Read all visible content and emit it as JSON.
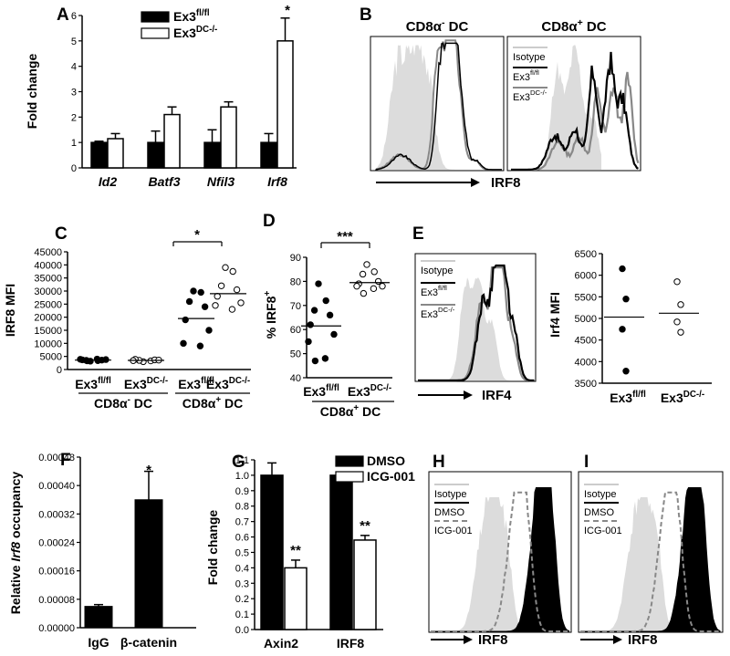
{
  "chart_data": [
    {
      "panel": "A",
      "type": "bar",
      "ylabel": "Fold change",
      "ylim": [
        0,
        6
      ],
      "yticks": [
        "0",
        "1",
        "2",
        "3",
        "4",
        "5",
        "6"
      ],
      "categories": [
        "Id2",
        "Batf3",
        "Nfil3",
        "Irf8"
      ],
      "series": [
        {
          "name_base": "Ex3",
          "name_sup": "fl/fl",
          "color": "#000000",
          "values": [
            1.0,
            1.0,
            1.0,
            1.0
          ],
          "err": [
            0.05,
            0.45,
            0.5,
            0.35
          ]
        },
        {
          "name_base": "Ex3",
          "name_sup": "DC-/-",
          "color": "#ffffff",
          "values": [
            1.15,
            2.1,
            2.4,
            5.0
          ],
          "err": [
            0.2,
            0.3,
            0.2,
            0.9
          ]
        }
      ],
      "annotations": [
        "*"
      ]
    },
    {
      "panel": "B",
      "type": "histogram",
      "titles_base": [
        "CD8α",
        "CD8α"
      ],
      "titles_sup": [
        "-",
        "+"
      ],
      "titles_suffix": [
        " DC",
        " DC"
      ],
      "xlabel": "IRF8",
      "legend": [
        {
          "base": "Isotype",
          "sup": "",
          "color": "#cccccc"
        },
        {
          "base": "Ex3",
          "sup": "fl/fl",
          "color": "#000000"
        },
        {
          "base": "Ex3",
          "sup": "DC-/-",
          "color": "#888888"
        }
      ]
    },
    {
      "panel": "C",
      "type": "scatter",
      "ylabel": "IRF8 MFI",
      "ylim": [
        0,
        45000
      ],
      "yticks": [
        "0",
        "5000",
        "10000",
        "15000",
        "20000",
        "25000",
        "30000",
        "35000",
        "40000",
        "45000"
      ],
      "groups": [
        {
          "base": "Ex3",
          "sup": "fl/fl",
          "filled": true,
          "values": [
            3200,
            3400,
            3500,
            3600,
            3700,
            3800,
            3900,
            4000,
            3300
          ],
          "mean": 3600
        },
        {
          "base": "Ex3",
          "sup": "DC-/-",
          "filled": false,
          "values": [
            3000,
            3300,
            3500,
            3700,
            3900,
            3600,
            3400
          ],
          "mean": 3500
        },
        {
          "base": "Ex3",
          "sup": "fl/fl",
          "filled": true,
          "values": [
            30000,
            29500,
            26000,
            24000,
            19000,
            15000,
            10000,
            9000
          ],
          "mean": 19500
        },
        {
          "base": "Ex3",
          "sup": "DC-/-",
          "filled": false,
          "values": [
            39000,
            37500,
            32000,
            30500,
            28000,
            25500,
            24500,
            23000
          ],
          "mean": 29000
        }
      ],
      "group_labels_base": [
        "CD8α",
        "CD8α"
      ],
      "group_labels_sup": [
        "-",
        "+"
      ],
      "group_labels_suffix": [
        " DC",
        " DC"
      ],
      "annotations": [
        "*"
      ]
    },
    {
      "panel": "D",
      "type": "scatter",
      "ylabel": "% IRF8",
      "ylabel_sup": "+",
      "ylim": [
        40,
        90
      ],
      "yticks": [
        "40",
        "50",
        "60",
        "70",
        "80",
        "90"
      ],
      "groups": [
        {
          "base": "Ex3",
          "sup": "fl/fl",
          "filled": true,
          "values": [
            79,
            72,
            68,
            66,
            62,
            58,
            55,
            48,
            47
          ],
          "mean": 61.5
        },
        {
          "base": "Ex3",
          "sup": "DC-/-",
          "filled": false,
          "values": [
            87,
            84,
            83,
            80,
            79,
            78,
            78,
            77,
            75
          ],
          "mean": 79.5
        }
      ],
      "group_label_base": "CD8α",
      "group_label_sup": "+",
      "group_label_suffix": " DC",
      "annotations": [
        "***"
      ]
    },
    {
      "panel": "E",
      "type": "histogram",
      "xlabel": "IRF4",
      "legend": [
        {
          "base": "Isotype",
          "sup": "",
          "color": "#cccccc"
        },
        {
          "base": "Ex3",
          "sup": "fl/fl",
          "color": "#000000"
        },
        {
          "base": "Ex3",
          "sup": "DC-/-",
          "color": "#888888"
        }
      ]
    },
    {
      "panel": "E2",
      "type": "scatter",
      "ylabel": "Irf4 MFI",
      "ylim": [
        3500,
        6500
      ],
      "yticks": [
        "3500",
        "4000",
        "4500",
        "5000",
        "5500",
        "6000",
        "6500"
      ],
      "groups": [
        {
          "base": "Ex3",
          "sup": "fl/fl",
          "filled": true,
          "values": [
            6150,
            5450,
            4750,
            3780
          ],
          "mean": 5030
        },
        {
          "base": "Ex3",
          "sup": "DC-/-",
          "filled": false,
          "values": [
            5850,
            5320,
            4920,
            4680
          ],
          "mean": 5120
        }
      ]
    },
    {
      "panel": "F",
      "type": "bar",
      "ylabel_pre": "Relative ",
      "ylabel_ital": "Irf8",
      "ylabel_post": " occupancy",
      "ylim": [
        0,
        0.00048
      ],
      "yticks": [
        "0.00000",
        "0.00008",
        "0.00016",
        "0.00024",
        "0.00032",
        "0.00040",
        "0.00048"
      ],
      "categories": [
        "IgG",
        "β-catenin"
      ],
      "values": [
        6e-05,
        0.00036
      ],
      "err": [
        5e-06,
        8e-05
      ],
      "annotations": [
        "*"
      ]
    },
    {
      "panel": "G",
      "type": "bar",
      "ylabel": "Fold change",
      "ylim": [
        0,
        1.1
      ],
      "yticks": [
        "0.0",
        "0.1",
        "0.2",
        "0.3",
        "0.4",
        "0.5",
        "0.6",
        "0.7",
        "0.8",
        "0.9",
        "1.0",
        "1.1"
      ],
      "categories": [
        "Axin2",
        "IRF8"
      ],
      "series": [
        {
          "name": "DMSO",
          "color": "#000000",
          "values": [
            1.0,
            1.0
          ],
          "err": [
            0.08,
            0.0
          ]
        },
        {
          "name": "ICG-001",
          "color": "#ffffff",
          "values": [
            0.4,
            0.58
          ],
          "err": [
            0.05,
            0.03
          ]
        }
      ],
      "annotations": [
        "**",
        "**"
      ]
    },
    {
      "panel": "H",
      "type": "histogram",
      "xlabel": "IRF8",
      "legend": [
        {
          "base": "Isotype",
          "sup": "",
          "color": "#cccccc"
        },
        {
          "base": "DMSO",
          "sup": "",
          "color": "#000000"
        },
        {
          "base": "ICG-001",
          "sup": "",
          "color": "#888888"
        }
      ]
    },
    {
      "panel": "I",
      "type": "histogram",
      "xlabel": "IRF8",
      "legend": [
        {
          "base": "Isotype",
          "sup": "",
          "color": "#cccccc"
        },
        {
          "base": "DMSO",
          "sup": "",
          "color": "#000000"
        },
        {
          "base": "ICG-001",
          "sup": "",
          "color": "#888888"
        }
      ]
    }
  ]
}
